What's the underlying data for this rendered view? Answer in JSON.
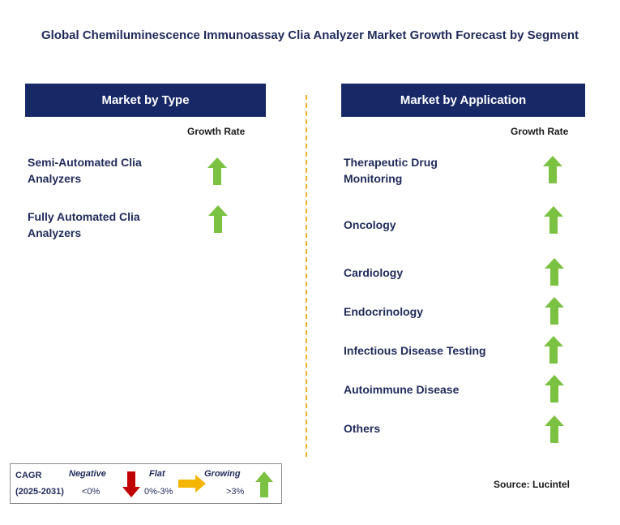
{
  "title": "Global Chemiluminescence Immunoassay Clia Analyzer Market Growth Forecast by Segment",
  "left_panel": {
    "header": "Market by Type",
    "growth_label": "Growth Rate",
    "segments": [
      {
        "label_line1": "Semi-Automated Clia",
        "label_line2": "Analyzers",
        "trend": "growing"
      },
      {
        "label_line1": "Fully Automated Clia",
        "label_line2": "Analyzers",
        "trend": "growing"
      }
    ]
  },
  "right_panel": {
    "header": "Market by Application",
    "growth_label": "Growth Rate",
    "segments": [
      {
        "label_line1": "Therapeutic Drug",
        "label_line2": "Monitoring",
        "trend": "growing"
      },
      {
        "label": "Oncology",
        "trend": "growing"
      },
      {
        "label": "Cardiology",
        "trend": "growing"
      },
      {
        "label": "Endocrinology",
        "trend": "growing"
      },
      {
        "label": "Infectious Disease Testing",
        "trend": "growing"
      },
      {
        "label": "Autoimmune Disease",
        "trend": "growing"
      },
      {
        "label": "Others",
        "trend": "growing"
      }
    ]
  },
  "legend": {
    "cagr": "CAGR",
    "period": "(2025-2031)",
    "negative": {
      "label": "Negative",
      "range": "<0%",
      "color": "#c00000",
      "icon": "arrow-down-icon"
    },
    "flat": {
      "label": "Flat",
      "range": "0%-3%",
      "color": "#f5b400",
      "icon": "arrow-right-icon"
    },
    "growing": {
      "label": "Growing",
      "range": ">3%",
      "color": "#7cc242",
      "icon": "arrow-up-icon"
    }
  },
  "source": "Source: Lucintel",
  "colors": {
    "header_bg": "#172866",
    "divider": "#f0b323",
    "growth_arrow": "#7cc242"
  }
}
